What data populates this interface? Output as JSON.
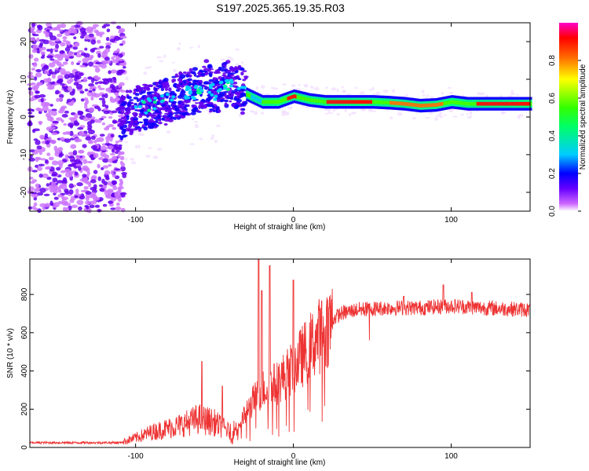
{
  "title": "S197.2025.365.19.35.R03",
  "chart_data": [
    {
      "type": "heatmap",
      "xlabel": "Height of straight line (km)",
      "ylabel": "Frequency (Hz)",
      "xlim": [
        -167,
        150
      ],
      "ylim": [
        -25,
        25
      ],
      "xticks": [
        -100,
        0,
        100
      ],
      "yticks": [
        -20,
        -10,
        0,
        10,
        20
      ],
      "colorbar": {
        "label": "Normalized spectral amplitude",
        "range": [
          0,
          1
        ],
        "ticks": [
          "0.0",
          "0.2",
          "0.4",
          "0.6",
          "0.8"
        ]
      },
      "ridge_frequency_hz": [
        [
          -110,
          0
        ],
        [
          -100,
          2
        ],
        [
          -90,
          3
        ],
        [
          -80,
          4
        ],
        [
          -70,
          6
        ],
        [
          -60,
          7
        ],
        [
          -55,
          9
        ],
        [
          -50,
          6
        ],
        [
          -45,
          8
        ],
        [
          -40,
          9
        ],
        [
          -35,
          8
        ],
        [
          -30,
          6
        ],
        [
          -20,
          4
        ],
        [
          -10,
          4
        ],
        [
          0,
          5.5
        ],
        [
          10,
          4.5
        ],
        [
          20,
          4
        ],
        [
          30,
          4
        ],
        [
          40,
          4
        ],
        [
          50,
          4
        ],
        [
          60,
          3.8
        ],
        [
          70,
          3.5
        ],
        [
          80,
          3
        ],
        [
          90,
          3.2
        ],
        [
          100,
          4
        ],
        [
          110,
          3.5
        ],
        [
          120,
          3.5
        ],
        [
          130,
          3.5
        ],
        [
          140,
          3.5
        ],
        [
          150,
          3.5
        ]
      ]
    },
    {
      "type": "line",
      "xlabel": "Height of straight line (km)",
      "ylabel": "SNR (10 * v/v)",
      "xlim": [
        -167,
        150
      ],
      "ylim": [
        0,
        985
      ],
      "xticks": [
        -100,
        0,
        100
      ],
      "yticks": [
        0,
        200,
        400,
        600,
        800
      ],
      "color": "#ee3333",
      "envelope": [
        [
          -167,
          25
        ],
        [
          -110,
          25
        ],
        [
          -100,
          50
        ],
        [
          -90,
          80
        ],
        [
          -80,
          100
        ],
        [
          -70,
          120
        ],
        [
          -60,
          150
        ],
        [
          -50,
          130
        ],
        [
          -40,
          80
        ],
        [
          -35,
          110
        ],
        [
          -30,
          180
        ],
        [
          -25,
          250
        ],
        [
          -20,
          300
        ],
        [
          -15,
          320
        ],
        [
          -10,
          340
        ],
        [
          -5,
          380
        ],
        [
          0,
          420
        ],
        [
          5,
          470
        ],
        [
          10,
          520
        ],
        [
          15,
          570
        ],
        [
          20,
          620
        ],
        [
          25,
          670
        ],
        [
          30,
          700
        ],
        [
          40,
          720
        ],
        [
          60,
          730
        ],
        [
          80,
          730
        ],
        [
          100,
          740
        ],
        [
          120,
          730
        ],
        [
          150,
          720
        ]
      ],
      "spikes": [
        [
          -58,
          450
        ],
        [
          -45,
          320
        ],
        [
          -22,
          985
        ],
        [
          -20,
          820
        ],
        [
          -15,
          950
        ],
        [
          0,
          875
        ],
        [
          70,
          790
        ],
        [
          95,
          850
        ],
        [
          113,
          810
        ]
      ]
    }
  ]
}
